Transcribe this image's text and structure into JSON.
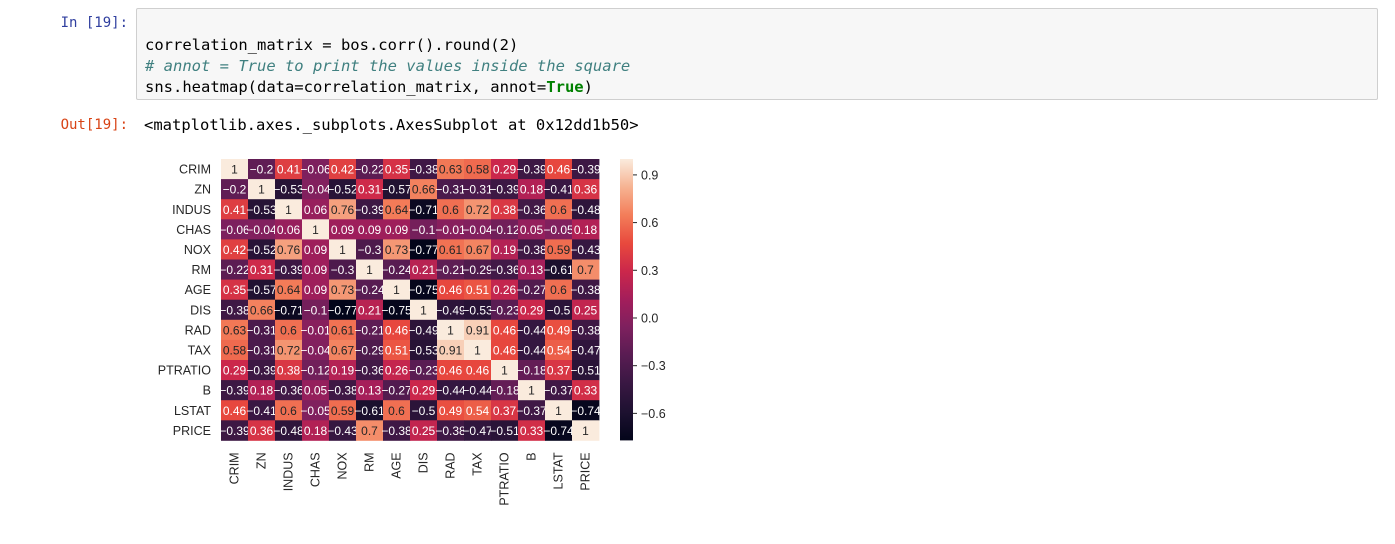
{
  "cell": {
    "in_prompt": "In [19]:",
    "out_prompt": "Out[19]:",
    "code": {
      "line1": "correlation_matrix = bos.corr().round(2)",
      "line2": "# annot = True to print the values inside the square",
      "line3_pre": "sns.heatmap(data=correlation_matrix, annot=",
      "line3_kw": "True",
      "line3_post": ")"
    },
    "output_text": "<matplotlib.axes._subplots.AxesSubplot at 0x12dd1b50>"
  },
  "chart_data": {
    "type": "heatmap",
    "title": "",
    "labels": [
      "CRIM",
      "ZN",
      "INDUS",
      "CHAS",
      "NOX",
      "RM",
      "AGE",
      "DIS",
      "RAD",
      "TAX",
      "PTRATIO",
      "B",
      "LSTAT",
      "PRICE"
    ],
    "values": [
      [
        1,
        -0.2,
        0.41,
        -0.06,
        0.42,
        -0.22,
        0.35,
        -0.38,
        0.63,
        0.58,
        0.29,
        -0.39,
        0.46,
        -0.39
      ],
      [
        -0.2,
        1,
        -0.53,
        -0.04,
        -0.52,
        0.31,
        -0.57,
        0.66,
        -0.31,
        -0.31,
        -0.39,
        0.18,
        -0.41,
        0.36
      ],
      [
        0.41,
        -0.53,
        1,
        0.06,
        0.76,
        -0.39,
        0.64,
        -0.71,
        0.6,
        0.72,
        0.38,
        -0.36,
        0.6,
        -0.48
      ],
      [
        -0.06,
        -0.04,
        0.06,
        1,
        0.09,
        0.09,
        0.09,
        -0.1,
        -0.01,
        -0.04,
        -0.12,
        0.05,
        -0.05,
        0.18
      ],
      [
        0.42,
        -0.52,
        0.76,
        0.09,
        1,
        -0.3,
        0.73,
        -0.77,
        0.61,
        0.67,
        0.19,
        -0.38,
        0.59,
        -0.43
      ],
      [
        -0.22,
        0.31,
        -0.39,
        0.09,
        -0.3,
        1,
        -0.24,
        0.21,
        -0.21,
        -0.29,
        -0.36,
        0.13,
        -0.61,
        0.7
      ],
      [
        0.35,
        -0.57,
        0.64,
        0.09,
        0.73,
        -0.24,
        1,
        -0.75,
        0.46,
        0.51,
        0.26,
        -0.27,
        0.6,
        -0.38
      ],
      [
        -0.38,
        0.66,
        -0.71,
        -0.1,
        -0.77,
        0.21,
        -0.75,
        1,
        -0.49,
        -0.53,
        -0.23,
        0.29,
        -0.5,
        0.25
      ],
      [
        0.63,
        -0.31,
        0.6,
        -0.01,
        0.61,
        -0.21,
        0.46,
        -0.49,
        1,
        0.91,
        0.46,
        -0.44,
        0.49,
        -0.38
      ],
      [
        0.58,
        -0.31,
        0.72,
        -0.04,
        0.67,
        -0.29,
        0.51,
        -0.53,
        0.91,
        1,
        0.46,
        -0.44,
        0.54,
        -0.47
      ],
      [
        0.29,
        -0.39,
        0.38,
        -0.12,
        0.19,
        -0.36,
        0.26,
        -0.23,
        0.46,
        0.46,
        1,
        -0.18,
        0.37,
        -0.51
      ],
      [
        -0.39,
        0.18,
        -0.36,
        0.05,
        -0.38,
        0.13,
        -0.27,
        0.29,
        -0.44,
        -0.44,
        -0.18,
        1,
        -0.37,
        0.33
      ],
      [
        0.46,
        -0.41,
        0.6,
        -0.05,
        0.59,
        -0.61,
        0.6,
        -0.5,
        0.49,
        0.54,
        0.37,
        -0.37,
        1,
        -0.74
      ],
      [
        -0.39,
        0.36,
        -0.48,
        0.18,
        -0.43,
        0.7,
        -0.38,
        0.25,
        -0.38,
        -0.47,
        -0.51,
        0.33,
        -0.74,
        1
      ]
    ],
    "colorbar_ticks": [
      0.9,
      0.6,
      0.3,
      0.0,
      -0.3,
      -0.6
    ],
    "colorbar_tick_labels": [
      "0.9",
      "0.6",
      "0.3",
      "0.0",
      "−0.3",
      "−0.6"
    ],
    "vmin": -0.77,
    "vmax": 1,
    "colormap": "rocket",
    "grid": false
  }
}
